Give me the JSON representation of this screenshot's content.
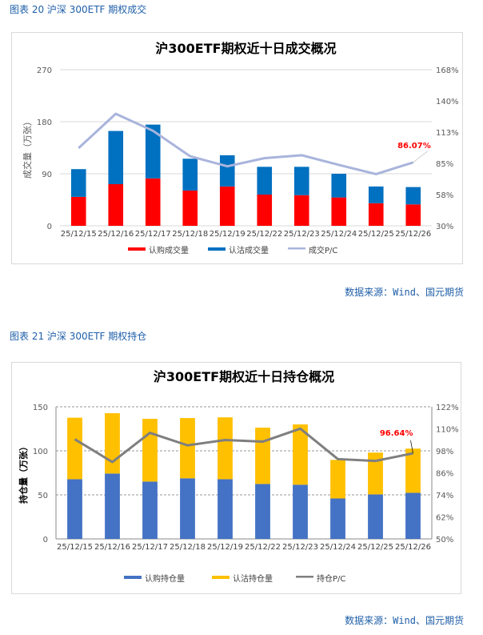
{
  "charts_meta": {
    "c1_caption": "图表 20  沪深 300ETF 期权成交",
    "c2_caption": "图表 21  沪深 300ETF 期权持仓",
    "source": "数据来源：Wind、国元期货"
  },
  "chart_data": [
    {
      "type": "bar",
      "stacked": true,
      "title": "沪300ETF期权近十日成交概况",
      "ylabel": "成交量（万张）",
      "categories": [
        "25/12/15",
        "25/12/16",
        "25/12/17",
        "25/12/18",
        "25/12/19",
        "25/12/22",
        "25/12/23",
        "25/12/24",
        "25/12/25",
        "25/12/26"
      ],
      "ylim": [
        0,
        270
      ],
      "yticks": [
        "0",
        "90",
        "180",
        "270"
      ],
      "y2lim": [
        30,
        168
      ],
      "y2ticks": [
        "30%",
        "58%",
        "85%",
        "113%",
        "140%",
        "168%"
      ],
      "grid": true,
      "legend": "bottom",
      "series": [
        {
          "name": "认购成交量",
          "kind": "bar",
          "color": "#FF0000",
          "values": [
            50,
            72,
            82,
            61,
            68,
            54,
            53,
            49,
            39,
            37
          ]
        },
        {
          "name": "认沽成交量",
          "kind": "bar",
          "color": "#0070C0",
          "values": [
            48,
            92,
            93,
            55,
            54,
            48,
            49,
            41,
            29,
            30
          ]
        },
        {
          "name": "成交P/C",
          "kind": "line",
          "axis": "right",
          "color": "#A9B4DC",
          "values": [
            98.7,
            129,
            114,
            91.5,
            82.6,
            89.8,
            92.4,
            83.8,
            75.7,
            86.07
          ]
        }
      ],
      "annotation": {
        "text": "86.07%",
        "color": "#FF0000"
      }
    },
    {
      "type": "bar",
      "stacked": true,
      "title": "沪300ETF期权近十日持仓概况",
      "ylabel": "持仓量（万张）",
      "categories": [
        "25/12/15",
        "25/12/16",
        "25/12/17",
        "25/12/18",
        "25/12/19",
        "25/12/22",
        "25/12/23",
        "25/12/24",
        "25/12/25",
        "25/12/26"
      ],
      "ylim": [
        0,
        150
      ],
      "yticks": [
        "0",
        "50",
        "100",
        "150"
      ],
      "y2lim": [
        50,
        122
      ],
      "y2ticks": [
        "50%",
        "62%",
        "74%",
        "86%",
        "98%",
        "110%",
        "122%"
      ],
      "grid": true,
      "legend": "bottom",
      "series": [
        {
          "name": "认购持仓量",
          "kind": "bar",
          "color": "#4472C4",
          "values": [
            67.8,
            74.2,
            65.1,
            68.8,
            67.8,
            62.4,
            61.5,
            45.9,
            50.5,
            52.3
          ]
        },
        {
          "name": "认沽持仓量",
          "kind": "bar",
          "color": "#FFC000",
          "values": [
            69.8,
            68.5,
            71.2,
            68.4,
            70.2,
            63.9,
            68.5,
            43.8,
            47.5,
            50.2
          ]
        },
        {
          "name": "持仓P/C",
          "kind": "line",
          "axis": "right",
          "color": "#7F7F7F",
          "values": [
            104.3,
            91.9,
            107.8,
            101,
            103.9,
            103,
            110.1,
            93.5,
            92.5,
            96.64
          ]
        }
      ],
      "annotation": {
        "text": "96.64%",
        "color": "#FF0000"
      }
    }
  ]
}
